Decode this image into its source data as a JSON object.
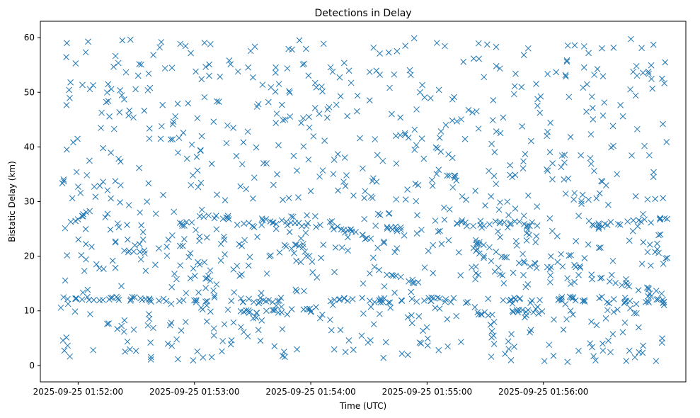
{
  "chart_data": {
    "type": "scatter",
    "title": "Detections in Delay",
    "xlabel": "Time (UTC)",
    "ylabel": "Bistatic Delay (km)",
    "marker": "x",
    "color": "#1f77b4",
    "x_unit": "seconds after 2025-09-25 01:51:00",
    "xlim": [
      40.5,
      373.5
    ],
    "ylim": [
      -3,
      63
    ],
    "x_ticks": [
      {
        "value": 60,
        "label": "2025-09-25 01:52:00"
      },
      {
        "value": 120,
        "label": "2025-09-25 01:53:00"
      },
      {
        "value": 180,
        "label": "2025-09-25 01:54:00"
      },
      {
        "value": 240,
        "label": "2025-09-25 01:55:00"
      },
      {
        "value": 300,
        "label": "2025-09-25 01:56:00"
      }
    ],
    "y_ticks": [
      {
        "value": 0,
        "label": "0"
      },
      {
        "value": 10,
        "label": "10"
      },
      {
        "value": 20,
        "label": "20"
      },
      {
        "value": 30,
        "label": "30"
      },
      {
        "value": 40,
        "label": "40"
      },
      {
        "value": 50,
        "label": "50"
      },
      {
        "value": 60,
        "label": "60"
      }
    ],
    "x_range": [
      51,
      364
    ],
    "tracks": [
      {
        "x": [
          51,
          130
        ],
        "y": [
          12.5,
          11.7
        ]
      },
      {
        "x": [
          130,
          165
        ],
        "y": [
          12.0,
          12.0
        ]
      },
      {
        "x": [
          138,
          150
        ],
        "y": [
          10.2,
          9.6
        ]
      },
      {
        "x": [
          150,
          182
        ],
        "y": [
          9.6,
          10.0
        ]
      },
      {
        "x": [
          192,
          211
        ],
        "y": [
          12.1,
          12.1
        ]
      },
      {
        "x": [
          211,
          240
        ],
        "y": [
          11.8,
          12.2
        ]
      },
      {
        "x": [
          240,
          264
        ],
        "y": [
          12.2,
          11.8
        ]
      },
      {
        "x": [
          264,
          275
        ],
        "y": [
          9.3,
          9.5
        ]
      },
      {
        "x": [
          280,
          302
        ],
        "y": [
          9.7,
          10.3
        ]
      },
      {
        "x": [
          279,
          297
        ],
        "y": [
          11.5,
          12.3
        ]
      },
      {
        "x": [
          305,
          364
        ],
        "y": [
          12.4,
          11.2
        ]
      },
      {
        "x": [
          57,
          66
        ],
        "y": [
          26.5,
          28.0
        ]
      },
      {
        "x": [
          110,
          122
        ],
        "y": [
          25.6,
          26.3
        ]
      },
      {
        "x": [
          123,
          142
        ],
        "y": [
          27.3,
          27.0
        ]
      },
      {
        "x": [
          156,
          205
        ],
        "y": [
          26.5,
          24.6
        ]
      },
      {
        "x": [
          195,
          212
        ],
        "y": [
          24.8,
          23.2
        ]
      },
      {
        "x": [
          213,
          238
        ],
        "y": [
          25.4,
          24.4
        ]
      },
      {
        "x": [
          255,
          270
        ],
        "y": [
          26.4,
          26.1
        ]
      },
      {
        "x": [
          270,
          300
        ],
        "y": [
          26.2,
          25.7
        ]
      },
      {
        "x": [
          325,
          364
        ],
        "y": [
          25.6,
          26.7
        ]
      },
      {
        "x": [
          83,
          95
        ],
        "y": [
          20.8,
          20.7
        ]
      },
      {
        "x": [
          165,
          178
        ],
        "y": [
          22.3,
          21.1
        ]
      },
      {
        "x": [
          215,
          240
        ],
        "y": [
          17.3,
          14.6
        ]
      },
      {
        "x": [
          258,
          279
        ],
        "y": [
          24.0,
          19.8
        ]
      },
      {
        "x": [
          261,
          279
        ],
        "y": [
          22.4,
          17.2
        ]
      },
      {
        "x": [
          283,
          304
        ],
        "y": [
          19.3,
          17.7
        ]
      },
      {
        "x": [
          324,
          361
        ],
        "y": [
          16.3,
          13.2
        ]
      },
      {
        "x": [
          244,
          255
        ],
        "y": [
          34.8,
          34.8
        ]
      },
      {
        "x": [
          352,
          364
        ],
        "y": [
          13.3,
          11.7
        ]
      }
    ],
    "track_points": 320,
    "noise_points": 900,
    "seed": 20250925
  }
}
